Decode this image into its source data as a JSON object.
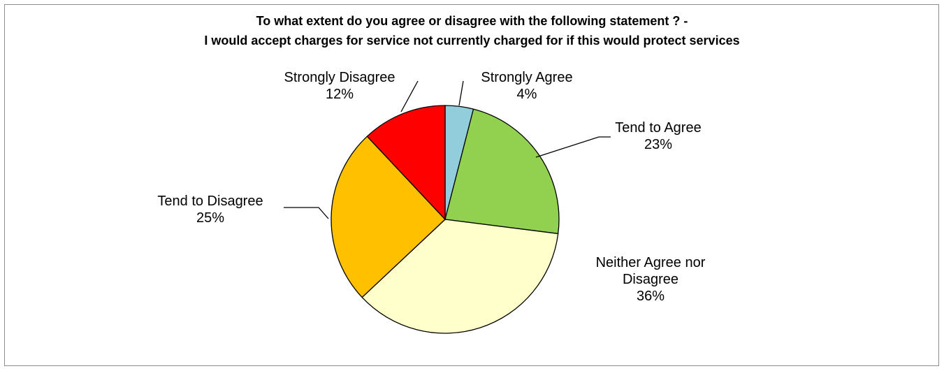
{
  "chart_data": {
    "type": "pie",
    "title_line1": "To what extent do you agree or disagree with the following statement ? -",
    "title_line2": "I would accept charges for service not currently charged for if this would protect services",
    "slices": [
      {
        "label": "Strongly Agree",
        "value": 4,
        "value_text": "4%",
        "color": "#92CDDC"
      },
      {
        "label": "Tend to Agree",
        "value": 23,
        "value_text": "23%",
        "color": "#92D050"
      },
      {
        "label": "Neither Agree nor Disagree",
        "label_lines": [
          "Neither Agree nor",
          "Disagree"
        ],
        "value": 36,
        "value_text": "36%",
        "color": "#FFFFCC"
      },
      {
        "label": "Tend to Disagree",
        "value": 25,
        "value_text": "25%",
        "color": "#FFC000"
      },
      {
        "label": "Strongly Disagree",
        "value": 12,
        "value_text": "12%",
        "color": "#FF0000"
      }
    ],
    "legend": "none"
  }
}
